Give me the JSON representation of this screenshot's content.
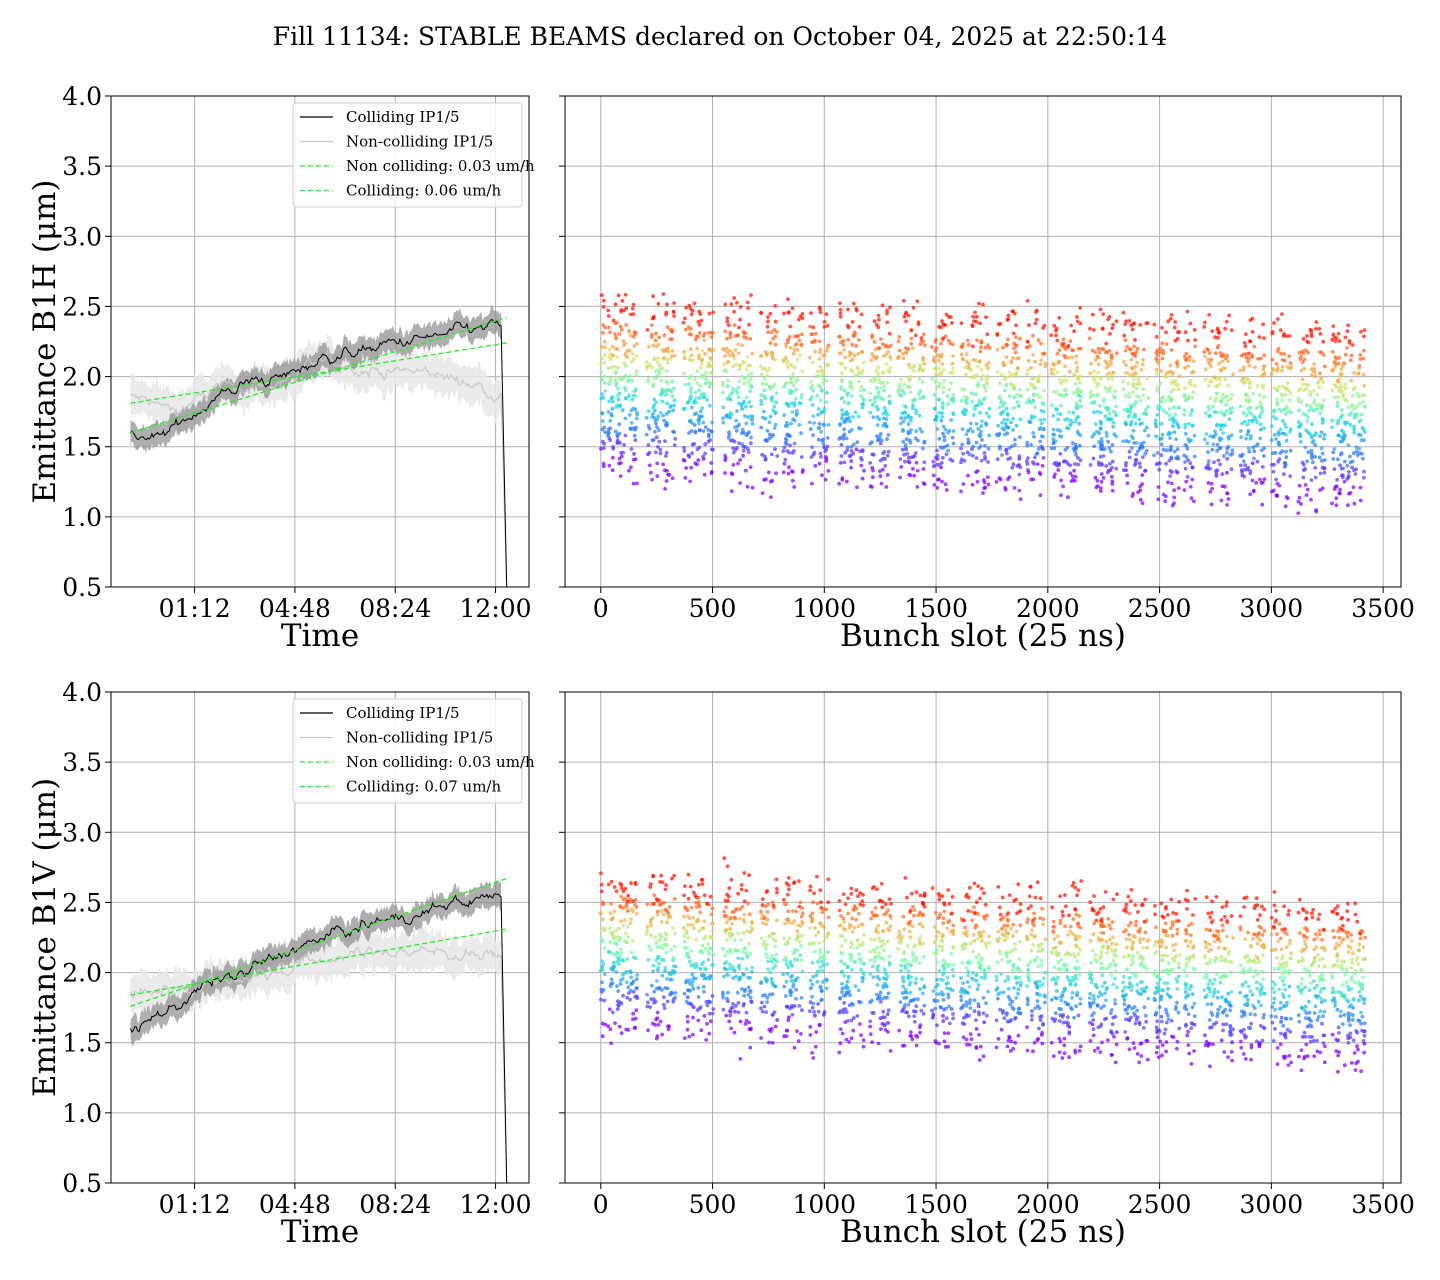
{
  "title": "Fill 11134: STABLE BEAMS declared on October 04, 2025 at 22:50:14",
  "colors": {
    "colliding": "#000000",
    "colliding_band": "#8c8c8c",
    "non_colliding": "#c8c8c8",
    "non_colliding_band": "#e6e6e6",
    "fit": "#22ee22",
    "grid": "#b0b0b0"
  },
  "chart_data": [
    {
      "type": "line",
      "id": "b1h-time",
      "xlabel": "Time",
      "ylabel": "Emittance B1H (μm)",
      "xticks": [
        "01:12",
        "04:48",
        "08:24",
        "12:00"
      ],
      "xtick_hours": [
        1.2,
        4.8,
        8.4,
        12.0
      ],
      "xlim_hours": [
        -1.8,
        13.2
      ],
      "ylim": [
        0.5,
        4.0
      ],
      "yticks": [
        "0.5",
        "1.0",
        "1.5",
        "2.0",
        "2.5",
        "3.0",
        "3.5",
        "4.0"
      ],
      "grid": true,
      "legend_position": "upper-right",
      "legend": [
        "Colliding IP1/5",
        "Non-colliding IP1/5",
        "Non colliding: 0.03 um/h",
        "Colliding: 0.06 um/h"
      ],
      "series": [
        {
          "name": "Colliding IP1/5",
          "x": [
            -1.1,
            0.0,
            1.5,
            3.0,
            4.5,
            6.0,
            7.5,
            9.0,
            10.5,
            12.2,
            12.4
          ],
          "y": [
            1.58,
            1.55,
            1.8,
            1.95,
            2.0,
            2.15,
            2.2,
            2.25,
            2.3,
            2.35,
            0.5
          ]
        },
        {
          "name": "Non-colliding IP1/5",
          "x": [
            -1.1,
            0.5,
            2.0,
            4.0,
            6.0,
            8.0,
            10.0,
            12.2,
            12.4
          ],
          "y": [
            1.85,
            1.75,
            1.9,
            1.95,
            2.1,
            2.05,
            2.0,
            1.9,
            0.5
          ]
        },
        {
          "name": "Non colliding: 0.03 um/h",
          "x": [
            -1.1,
            12.4
          ],
          "y": [
            1.81,
            2.24
          ]
        },
        {
          "name": "Colliding: 0.06 um/h",
          "x": [
            -1.1,
            12.4
          ],
          "y": [
            1.6,
            2.42
          ]
        }
      ]
    },
    {
      "type": "scatter",
      "id": "b1h-bunch",
      "xlabel": "Bunch slot (25 ns)",
      "xticks": [
        "0",
        "500",
        "1000",
        "1500",
        "2000",
        "2500",
        "3000",
        "3500"
      ],
      "xlim": [
        -160,
        3580
      ],
      "ylim": [
        0.5,
        4.0
      ],
      "grid": true,
      "band_ranges": [
        [
          0,
          20
        ],
        [
          30,
          165
        ],
        [
          205,
          335
        ],
        [
          370,
          505
        ],
        [
          545,
          680
        ],
        [
          715,
          790
        ],
        [
          815,
          905
        ],
        [
          935,
          1020
        ],
        [
          1065,
          1180
        ],
        [
          1205,
          1300
        ],
        [
          1330,
          1450
        ],
        [
          1480,
          1580
        ],
        [
          1610,
          1740
        ],
        [
          1770,
          1880
        ],
        [
          1905,
          1990
        ],
        [
          2015,
          2150
        ],
        [
          2185,
          2310
        ],
        [
          2335,
          2450
        ],
        [
          2475,
          2590
        ],
        [
          2610,
          2660
        ],
        [
          2700,
          2830
        ],
        [
          2860,
          2970
        ],
        [
          3000,
          3090
        ],
        [
          3120,
          3240
        ],
        [
          3270,
          3420
        ]
      ],
      "colored_rows": [
        1.4,
        1.52,
        1.63,
        1.74,
        1.84,
        1.93,
        2.02,
        2.12,
        2.22,
        2.33,
        2.46
      ],
      "row_trend_per_slot": -6e-05
    },
    {
      "type": "line",
      "id": "b1v-time",
      "xlabel": "Time",
      "ylabel": "Emittance B1V (μm)",
      "xticks": [
        "01:12",
        "04:48",
        "08:24",
        "12:00"
      ],
      "xtick_hours": [
        1.2,
        4.8,
        8.4,
        12.0
      ],
      "xlim_hours": [
        -1.8,
        13.2
      ],
      "ylim": [
        0.5,
        4.0
      ],
      "yticks": [
        "0.5",
        "1.0",
        "1.5",
        "2.0",
        "2.5",
        "3.0",
        "3.5",
        "4.0"
      ],
      "grid": true,
      "legend_position": "upper-right",
      "legend": [
        "Colliding IP1/5",
        "Non-colliding IP1/5",
        "Non colliding: 0.03 um/h",
        "Colliding: 0.07 um/h"
      ],
      "series": [
        {
          "name": "Colliding IP1/5",
          "x": [
            -1.1,
            0.0,
            1.5,
            3.0,
            4.5,
            6.0,
            7.5,
            9.0,
            10.5,
            12.2,
            12.4
          ],
          "y": [
            1.6,
            1.7,
            1.9,
            2.0,
            2.15,
            2.25,
            2.35,
            2.4,
            2.5,
            2.55,
            0.5
          ]
        },
        {
          "name": "Non-colliding IP1/5",
          "x": [
            -1.1,
            0.5,
            2.0,
            4.0,
            6.0,
            8.0,
            10.0,
            12.2,
            12.4
          ],
          "y": [
            1.85,
            1.9,
            1.95,
            2.0,
            2.1,
            2.15,
            2.15,
            2.1,
            0.5
          ]
        },
        {
          "name": "Non colliding: 0.03 um/h",
          "x": [
            -1.1,
            12.4
          ],
          "y": [
            1.84,
            2.31
          ]
        },
        {
          "name": "Colliding: 0.07 um/h",
          "x": [
            -1.1,
            12.4
          ],
          "y": [
            1.76,
            2.67
          ]
        }
      ]
    },
    {
      "type": "scatter",
      "id": "b1v-bunch",
      "xlabel": "Bunch slot (25 ns)",
      "xticks": [
        "0",
        "500",
        "1000",
        "1500",
        "2000",
        "2500",
        "3000",
        "3500"
      ],
      "xlim": [
        -160,
        3580
      ],
      "ylim": [
        0.5,
        4.0
      ],
      "grid": true,
      "band_ranges": [
        [
          0,
          20
        ],
        [
          30,
          165
        ],
        [
          205,
          335
        ],
        [
          370,
          505
        ],
        [
          545,
          680
        ],
        [
          715,
          790
        ],
        [
          815,
          905
        ],
        [
          935,
          1020
        ],
        [
          1065,
          1180
        ],
        [
          1205,
          1300
        ],
        [
          1330,
          1450
        ],
        [
          1480,
          1580
        ],
        [
          1610,
          1740
        ],
        [
          1770,
          1880
        ],
        [
          1905,
          1990
        ],
        [
          2015,
          2150
        ],
        [
          2185,
          2310
        ],
        [
          2335,
          2450
        ],
        [
          2475,
          2590
        ],
        [
          2610,
          2660
        ],
        [
          2700,
          2830
        ],
        [
          2860,
          2970
        ],
        [
          3000,
          3090
        ],
        [
          3120,
          3240
        ],
        [
          3270,
          3420
        ]
      ],
      "colored_rows": [
        1.68,
        1.8,
        1.91,
        2.01,
        2.1,
        2.2,
        2.3,
        2.4,
        2.5,
        2.61
      ],
      "row_trend_per_slot": -7e-05
    }
  ]
}
